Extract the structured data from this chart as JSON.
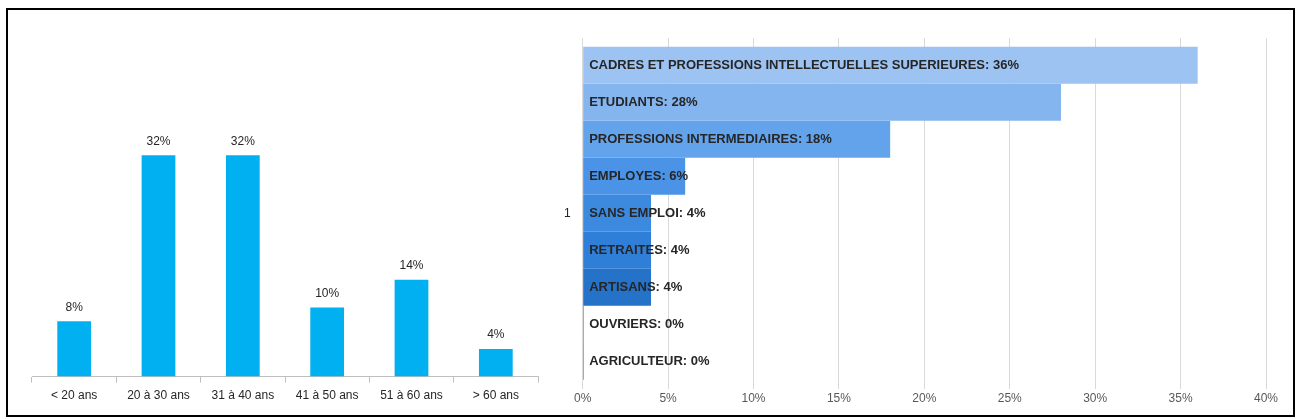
{
  "chart_data": [
    {
      "type": "bar",
      "categories": [
        "< 20 ans",
        "20 à 30 ans",
        "31 à 40 ans",
        "41 à 50 ans",
        "51 à 60 ans",
        "> 60 ans"
      ],
      "values": [
        8,
        32,
        32,
        10,
        14,
        4
      ],
      "value_labels": [
        "8%",
        "32%",
        "32%",
        "10%",
        "14%",
        "4%"
      ],
      "color": "#00b0f0"
    },
    {
      "type": "bar",
      "orientation": "horizontal",
      "categories": [
        "1"
      ],
      "series": [
        {
          "color": "#9dc3f3",
          "values": [
            36
          ],
          "value_labels": [
            "CADRES ET PROFESSIONS INTELLECTUELLES SUPERIEURES: 36%"
          ]
        },
        {
          "color": "#84b5ef",
          "values": [
            28
          ],
          "value_labels": [
            "ETUDIANTS: 28%"
          ]
        },
        {
          "color": "#62a3ec",
          "values": [
            18
          ],
          "value_labels": [
            "PROFESSIONS INTERMEDIAIRES: 18%"
          ]
        },
        {
          "color": "#4a93e6",
          "values": [
            6
          ],
          "value_labels": [
            "EMPLOYES: 6%"
          ]
        },
        {
          "color": "#3c89e0",
          "values": [
            4
          ],
          "value_labels": [
            "SANS EMPLOI: 4%"
          ]
        },
        {
          "color": "#2f7fd8",
          "values": [
            4
          ],
          "value_labels": [
            "RETRAITES: 4%"
          ]
        },
        {
          "color": "#2572c9",
          "values": [
            4
          ],
          "value_labels": [
            "ARTISANS: 4%"
          ]
        },
        {
          "color": "#1f66bd",
          "values": [
            0
          ],
          "value_labels": [
            "OUVRIERS: 0%"
          ]
        },
        {
          "color": "#1c5eb0",
          "values": [
            0
          ],
          "value_labels": [
            "AGRICULTEUR: 0%"
          ]
        }
      ],
      "xlim": [
        0,
        40
      ],
      "xticks": [
        {
          "value": 0,
          "label": "0%"
        },
        {
          "value": 5,
          "label": "5%"
        },
        {
          "value": 10,
          "label": "10%"
        },
        {
          "value": 15,
          "label": "15%"
        },
        {
          "value": 20,
          "label": "20%"
        },
        {
          "value": 25,
          "label": "25%"
        },
        {
          "value": 30,
          "label": "30%"
        },
        {
          "value": 35,
          "label": "35%"
        },
        {
          "value": 40,
          "label": "40%"
        }
      ],
      "grid": "x"
    }
  ]
}
